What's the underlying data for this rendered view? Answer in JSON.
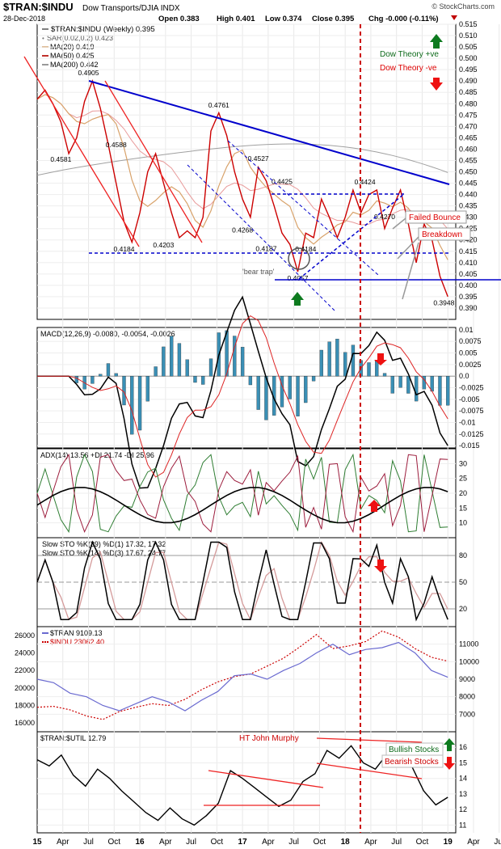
{
  "header": {
    "symbol": "$TRAN:$INDU",
    "name": "Dow Transports/DJIA  INDX",
    "watermark": "© StockCharts.com",
    "date": "28-Dec-2018",
    "quote": {
      "open": "Open 0.383",
      "high": "High 0.401",
      "low": "Low 0.374",
      "close": "Close 0.395",
      "chg": "Chg -0.000 (-0.11%)"
    }
  },
  "x_axis": {
    "labels": [
      "15",
      "Apr",
      "Jul",
      "Oct",
      "16",
      "Apr",
      "Jul",
      "Oct",
      "17",
      "Apr",
      "Jul",
      "Oct",
      "18",
      "Apr",
      "Jul",
      "Oct",
      "19",
      "Apr",
      "Jul"
    ]
  },
  "colors": {
    "price": "#cc0000",
    "trend": "#0000cc",
    "bull": "#1a7a1a",
    "bear": "#dd0000",
    "macd_hist": "#3a8fb5",
    "ma20": "#d8a26a",
    "ma50": "#e89a9a",
    "ma200": "#a0a0a0"
  },
  "legend": {
    "main": "$TRAN:$INDU (Weekly) 0.395",
    "sar": "SAR(0.02,0.2) 0.423",
    "ma20": "MA(20) 0.419",
    "ma50": "MA(50) 0.425",
    "ma200": "MA(200) 0.442",
    "macd": "MACD(12,26,9) -0.0080, -0.0054, -0.0026",
    "adx": "ADX(14) 13.56 +DI 21.74 -DI 25.96",
    "sto1": "Slow STO %K(39) %D(1) 17.32, 17.32",
    "sto2": "Slow STO %K(14) %D(3) 17.67, 24.77",
    "tran": "$TRAN 9109.13",
    "indu": "$INDU 23062.40",
    "util": "$TRAN:$UTIL 12.79"
  },
  "annotations": {
    "dt_pos": "Dow Theory +ve",
    "dt_neg": "Dow Theory -ve",
    "failed_bounce": "Failed Bounce",
    "breakdown": "Breakdown",
    "bear_trap": "'bear trap'",
    "murphy": "HT John Murphy",
    "bullish": "Bullish Stocks",
    "bearish": "Bearish Stocks"
  },
  "chart_data": [
    {
      "type": "line",
      "title": "$TRAN:$INDU (Weekly)",
      "ylim": [
        0.385,
        0.515
      ],
      "yticks": [
        0.39,
        0.395,
        0.4,
        0.405,
        0.41,
        0.415,
        0.42,
        0.425,
        0.43,
        0.435,
        0.44,
        0.445,
        0.45,
        0.455,
        0.46,
        0.465,
        0.47,
        0.475,
        0.48,
        0.485,
        0.49,
        0.495,
        0.5,
        0.505,
        0.51,
        0.515
      ],
      "price_labels": [
        "0.4905",
        "0.4581",
        "0.4588",
        "0.4184",
        "0.4203",
        "0.4761",
        "0.4527",
        "0.4268",
        "0.4425",
        "0.4187",
        "0.4057",
        "0.4184",
        "0.4424",
        "0.4270",
        "0.3948"
      ],
      "series": [
        {
          "name": "$TRAN:$INDU",
          "x": [
            0,
            4,
            8,
            12,
            16,
            20,
            24,
            28,
            32,
            36,
            40,
            44,
            48,
            52,
            56,
            60,
            64,
            68,
            72,
            76,
            80,
            84,
            88,
            92,
            96,
            100,
            104,
            108,
            112,
            116,
            120,
            124,
            128,
            132,
            136,
            140,
            144,
            148,
            152,
            156,
            160,
            164,
            168,
            172,
            176,
            180,
            184,
            188,
            192,
            196,
            200,
            204,
            208
          ],
          "y": [
            0.482,
            0.486,
            0.48,
            0.472,
            0.458,
            0.465,
            0.481,
            0.49,
            0.478,
            0.462,
            0.445,
            0.428,
            0.419,
            0.432,
            0.45,
            0.458,
            0.445,
            0.432,
            0.421,
            0.424,
            0.421,
            0.43,
            0.468,
            0.476,
            0.466,
            0.45,
            0.438,
            0.43,
            0.452,
            0.446,
            0.435,
            0.423,
            0.418,
            0.406,
            0.423,
            0.421,
            0.438,
            0.43,
            0.421,
            0.43,
            0.442,
            0.432,
            0.44,
            0.442,
            0.425,
            0.434,
            0.442,
            0.427,
            0.41,
            0.427,
            0.42,
            0.404,
            0.395
          ]
        }
      ]
    },
    {
      "type": "bar",
      "title": "MACD(12,26,9)",
      "ylim": [
        -0.0155,
        0.0105
      ],
      "yticks": [
        0.01,
        0.0075,
        0.005,
        0.0025,
        0,
        -0.0025,
        -0.005,
        -0.0075,
        -0.01,
        -0.0125,
        -0.015
      ],
      "latest": [
        -0.008,
        -0.0054,
        -0.0026
      ]
    },
    {
      "type": "line",
      "title": "ADX(14)",
      "ylim": [
        5,
        35
      ],
      "yticks": [
        10,
        15,
        20,
        25,
        30
      ],
      "latest": {
        "adx": 13.56,
        "+di": 21.74,
        "-di": 25.96
      }
    },
    {
      "type": "line",
      "title": "Slow STO",
      "ylim": [
        0,
        100
      ],
      "yticks": [
        20,
        50,
        80
      ],
      "latest": {
        "k39": 17.32,
        "k14": 17.67,
        "d3": 24.77
      }
    },
    {
      "type": "line",
      "title": "$TRAN / $INDU",
      "series": [
        {
          "name": "$TRAN",
          "ylim": [
            6000,
            12000
          ],
          "yticks": [
            7000,
            8000,
            9000,
            10000,
            11000
          ],
          "values": [
            9000,
            8800,
            8200,
            8000,
            7500,
            7200,
            7600,
            8000,
            7700,
            7200,
            7800,
            8300,
            9200,
            9300,
            9000,
            9500,
            9900,
            10500,
            11000,
            10400,
            10700,
            10800,
            11100,
            10500,
            9500,
            9109
          ]
        },
        {
          "name": "$INDU",
          "ylim": [
            15000,
            27000
          ],
          "yticks": [
            16000,
            18000,
            20000,
            22000,
            24000,
            26000
          ],
          "values": [
            17800,
            17900,
            17500,
            16800,
            16400,
            17300,
            17800,
            18200,
            18000,
            18700,
            19800,
            20700,
            21300,
            21600,
            22500,
            23400,
            24700,
            26100,
            24500,
            24800,
            25300,
            26500,
            25800,
            24500,
            23500,
            23062
          ]
        }
      ]
    },
    {
      "type": "line",
      "title": "$TRAN:$UTIL",
      "ylim": [
        10.5,
        17
      ],
      "yticks": [
        11,
        12,
        13,
        14,
        15,
        16
      ],
      "latest": 12.79
    }
  ]
}
